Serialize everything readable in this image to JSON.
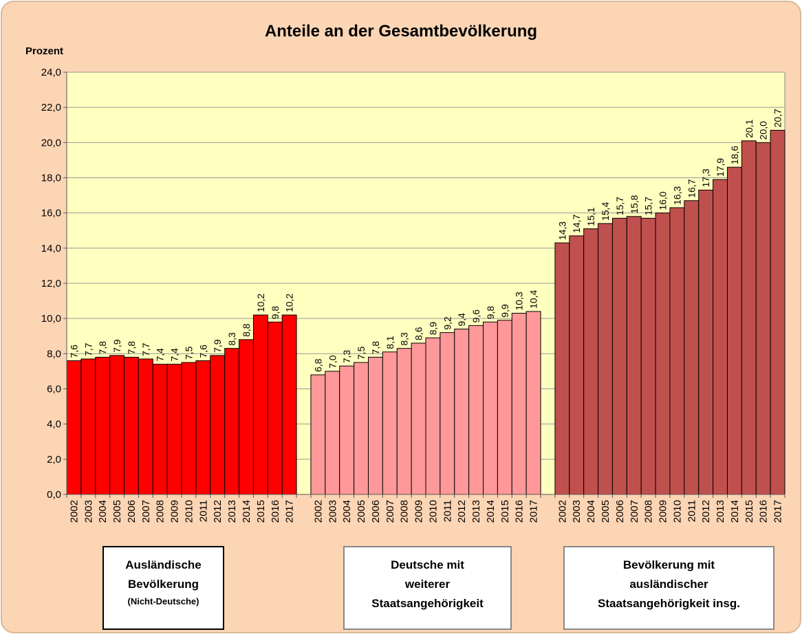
{
  "chart_data": {
    "type": "bar",
    "title": "Anteile an der Gesamtbevölkerung",
    "y_label": "Prozent",
    "ylim": [
      0,
      24
    ],
    "yticks": [
      {
        "value": 0,
        "label": "0,0"
      },
      {
        "value": 2,
        "label": "2,0"
      },
      {
        "value": 4,
        "label": "4,0"
      },
      {
        "value": 6,
        "label": "6,0"
      },
      {
        "value": 8,
        "label": "8,0"
      },
      {
        "value": 10,
        "label": "10,0"
      },
      {
        "value": 12,
        "label": "12,0"
      },
      {
        "value": 14,
        "label": "14,0"
      },
      {
        "value": 16,
        "label": "16,0"
      },
      {
        "value": 18,
        "label": "18,0"
      },
      {
        "value": 20,
        "label": "20,0"
      },
      {
        "value": 22,
        "label": "22,0"
      },
      {
        "value": 24,
        "label": "24,0"
      }
    ],
    "grid": true,
    "groups": [
      {
        "label": [
          "Ausländische",
          "Bevölkerung"
        ],
        "note": "(Nicht-Deutsche)",
        "color": "#ff0000",
        "categories": [
          "2002",
          "2003",
          "2004",
          "2005",
          "2006",
          "2007",
          "2008",
          "2009",
          "2010",
          "2011",
          "2012",
          "2013",
          "2014",
          "2015",
          "2016",
          "2017"
        ],
        "values": [
          7.6,
          7.7,
          7.8,
          7.9,
          7.8,
          7.7,
          7.4,
          7.4,
          7.5,
          7.6,
          7.9,
          8.3,
          8.8,
          10.2,
          9.8,
          10.2
        ],
        "value_labels": [
          "7,6",
          "7,7",
          "7,8",
          "7,9",
          "7,8",
          "7,7",
          "7,4",
          "7,4",
          "7,5",
          "7,6",
          "7,9",
          "8,3",
          "8,8",
          "10,2",
          "9,8",
          "10,2"
        ]
      },
      {
        "label": [
          "Deutsche mit",
          "weiterer",
          "Staatsangehörigkeit"
        ],
        "color": "#ff9999",
        "categories": [
          "2002",
          "2003",
          "2004",
          "2005",
          "2006",
          "2007",
          "2008",
          "2009",
          "2010",
          "2011",
          "2012",
          "2013",
          "2014",
          "2015",
          "2016",
          "2017"
        ],
        "values": [
          6.8,
          7.0,
          7.3,
          7.5,
          7.8,
          8.1,
          8.3,
          8.6,
          8.9,
          9.2,
          9.4,
          9.6,
          9.8,
          9.9,
          10.3,
          10.4
        ],
        "value_labels": [
          "6,8",
          "7,0",
          "7,3",
          "7,5",
          "7,8",
          "8,1",
          "8,3",
          "8,6",
          "8,9",
          "9,2",
          "9,4",
          "9,6",
          "9,8",
          "9,9",
          "10,3",
          "10,4"
        ]
      },
      {
        "label": [
          "Bevölkerung mit",
          "ausländischer",
          "Staatsangehörigkeit insg."
        ],
        "color": "#c0504d",
        "categories": [
          "2002",
          "2003",
          "2004",
          "2005",
          "2006",
          "2007",
          "2008",
          "2009",
          "2010",
          "2011",
          "2012",
          "2013",
          "2014",
          "2015",
          "2016",
          "2017"
        ],
        "values": [
          14.3,
          14.7,
          15.1,
          15.4,
          15.7,
          15.8,
          15.7,
          16.0,
          16.3,
          16.7,
          17.3,
          17.9,
          18.6,
          20.1,
          20.0,
          20.7
        ],
        "value_labels": [
          "14,3",
          "14,7",
          "15,1",
          "15,4",
          "15,7",
          "15,8",
          "15,7",
          "16,0",
          "16,3",
          "16,7",
          "17,3",
          "17,9",
          "18,6",
          "20,1",
          "20,0",
          "20,7"
        ]
      }
    ]
  }
}
